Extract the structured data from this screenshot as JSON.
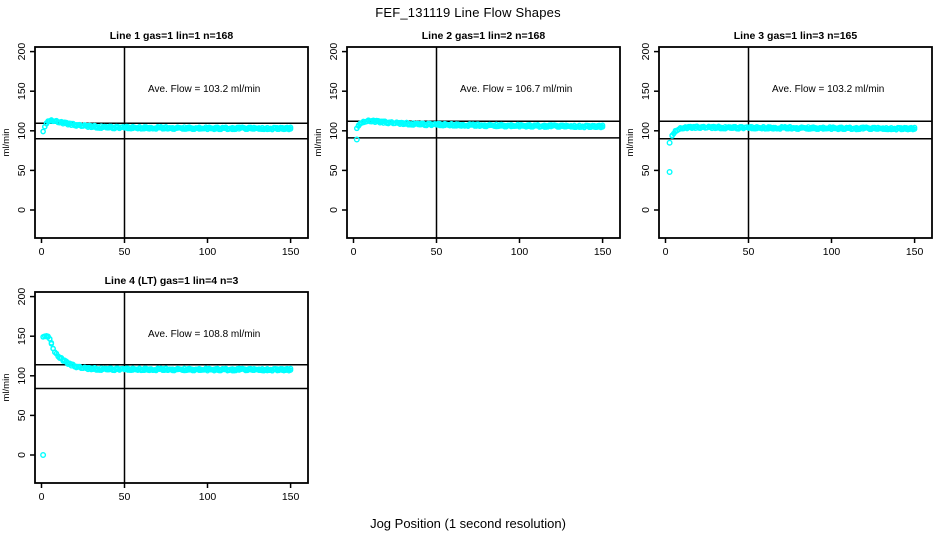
{
  "figure": {
    "title": "FEF_131119  Line Flow Shapes",
    "xlabel": "Jog Position (1 second resolution)",
    "background_color": "#ffffff"
  },
  "chart_data": {
    "type": "scatter",
    "point_color": "#00ffff",
    "line_color": "#000000",
    "grid": false,
    "legend": false,
    "charts": [
      {
        "title": "Line 1 gas=1 lin=1 n=168",
        "line_label": "Line 1",
        "gas": 1,
        "lin": 1,
        "n": 168,
        "ave_flow_ml_min": 103.2,
        "annotation": {
          "text": "Ave. Flow =  103.2  ml/min",
          "x": 98,
          "y": 149
        },
        "ylabel": "ml/min",
        "xlim": [
          -3.9,
          160.5
        ],
        "ylim": [
          -35.4,
          205.8
        ],
        "xticks": [
          0,
          50,
          100,
          150
        ],
        "yticks": [
          0,
          50,
          100,
          150,
          200
        ],
        "hlines": [
          109.5,
          90
        ],
        "vlines": [
          50
        ],
        "series": {
          "x_start": 1,
          "x_end": 150,
          "thickness": 3,
          "keypoints": [
            [
              1,
              100
            ],
            [
              2,
              106
            ],
            [
              3,
              110
            ],
            [
              4,
              112
            ],
            [
              5,
              112.8
            ],
            [
              6,
              113
            ],
            [
              8,
              112.3
            ],
            [
              10,
              111.2
            ],
            [
              13,
              110
            ],
            [
              16,
              108.8
            ],
            [
              20,
              107.5
            ],
            [
              25,
              106.3
            ],
            [
              30,
              105.4
            ],
            [
              35,
              104.8
            ],
            [
              40,
              104.4
            ],
            [
              50,
              104
            ],
            [
              60,
              103.7
            ],
            [
              80,
              103.4
            ],
            [
              100,
              103.2
            ],
            [
              120,
              103.1
            ],
            [
              150,
              103
            ]
          ]
        },
        "outliers": []
      },
      {
        "title": "Line 2 gas=1 lin=2 n=168",
        "line_label": "Line 2",
        "gas": 1,
        "lin": 2,
        "n": 168,
        "ave_flow_ml_min": 106.7,
        "annotation": {
          "text": "Ave. Flow =  106.7  ml/min",
          "x": 98,
          "y": 149
        },
        "ylabel": "ml/min",
        "xlim": [
          -3.9,
          160.5
        ],
        "ylim": [
          -35.4,
          205.8
        ],
        "xticks": [
          0,
          50,
          100,
          150
        ],
        "yticks": [
          0,
          50,
          100,
          150,
          200
        ],
        "hlines": [
          112,
          91
        ],
        "vlines": [
          50
        ],
        "series": {
          "x_start": 2,
          "x_end": 150,
          "thickness": 3,
          "keypoints": [
            [
              2,
              104
            ],
            [
              3,
              107
            ],
            [
              4,
              109
            ],
            [
              5,
              110.5
            ],
            [
              7,
              111.8
            ],
            [
              9,
              112.3
            ],
            [
              12,
              112.2
            ],
            [
              15,
              111.5
            ],
            [
              20,
              110.5
            ],
            [
              25,
              109.8
            ],
            [
              30,
              109.2
            ],
            [
              40,
              108.4
            ],
            [
              50,
              107.8
            ],
            [
              65,
              107.2
            ],
            [
              80,
              106.8
            ],
            [
              100,
              106.4
            ],
            [
              120,
              106
            ],
            [
              150,
              105.5
            ]
          ]
        },
        "outliers": [
          [
            2,
            89
          ]
        ]
      },
      {
        "title": "Line 3 gas=1 lin=3 n=165",
        "line_label": "Line 3",
        "gas": 1,
        "lin": 3,
        "n": 165,
        "ave_flow_ml_min": 103.2,
        "annotation": {
          "text": "Ave. Flow =  103.2  ml/min",
          "x": 98,
          "y": 149
        },
        "ylabel": "ml/min",
        "xlim": [
          -3.9,
          160.5
        ],
        "ylim": [
          -35.4,
          205.8
        ],
        "xticks": [
          0,
          50,
          100,
          150
        ],
        "yticks": [
          0,
          50,
          100,
          150,
          200
        ],
        "hlines": [
          112,
          90
        ],
        "vlines": [
          50
        ],
        "series": {
          "x_start": 4,
          "x_end": 150,
          "thickness": 3,
          "keypoints": [
            [
              3.5,
              92
            ],
            [
              4,
              94
            ],
            [
              5,
              97
            ],
            [
              6,
              99.5
            ],
            [
              7,
              101
            ],
            [
              8,
              102
            ],
            [
              10,
              103.2
            ],
            [
              13,
              104
            ],
            [
              16,
              104.3
            ],
            [
              20,
              104.4
            ],
            [
              30,
              104.2
            ],
            [
              50,
              103.8
            ],
            [
              75,
              103.5
            ],
            [
              100,
              103.3
            ],
            [
              125,
              103
            ],
            [
              150,
              102.8
            ]
          ]
        },
        "outliers": [
          [
            2.5,
            85
          ],
          [
            2.5,
            48
          ]
        ]
      },
      {
        "title": "Line 4 (LT) gas=1 lin=4 n=3",
        "line_label": "Line 4 (LT)",
        "gas": 1,
        "lin": 4,
        "n": 3,
        "ave_flow_ml_min": 108.8,
        "annotation": {
          "text": "Ave. Flow =  108.8  ml/min",
          "x": 98,
          "y": 149
        },
        "ylabel": "ml/min",
        "xlim": [
          -3.9,
          160.5
        ],
        "ylim": [
          -35.4,
          205.8
        ],
        "xticks": [
          0,
          50,
          100,
          150
        ],
        "yticks": [
          0,
          50,
          100,
          150,
          200
        ],
        "hlines": [
          114,
          84
        ],
        "vlines": [
          50
        ],
        "series": {
          "x_start": 1,
          "x_end": 150,
          "thickness": 3,
          "keypoints": [
            [
              1,
              150
            ],
            [
              2,
              151
            ],
            [
              3,
              150.5
            ],
            [
              4,
              149.5
            ],
            [
              5,
              147
            ],
            [
              6,
              141
            ],
            [
              7,
              135
            ],
            [
              8,
              130
            ],
            [
              9,
              127
            ],
            [
              10,
              125
            ],
            [
              11,
              123
            ],
            [
              12,
              121.5
            ],
            [
              13,
              119.8
            ],
            [
              14,
              118.3
            ],
            [
              15,
              117
            ],
            [
              16,
              115.8
            ],
            [
              17,
              114.8
            ],
            [
              18,
              113.8
            ],
            [
              19,
              113
            ],
            [
              20,
              112.2
            ],
            [
              22,
              111
            ],
            [
              24,
              110.2
            ],
            [
              26,
              109.6
            ],
            [
              28,
              109.2
            ],
            [
              30,
              108.9
            ],
            [
              35,
              108.6
            ],
            [
              40,
              108.4
            ],
            [
              50,
              108.2
            ],
            [
              70,
              108
            ],
            [
              100,
              107.9
            ],
            [
              150,
              107.8
            ]
          ]
        },
        "outliers": [
          [
            1,
            0
          ]
        ]
      }
    ]
  }
}
